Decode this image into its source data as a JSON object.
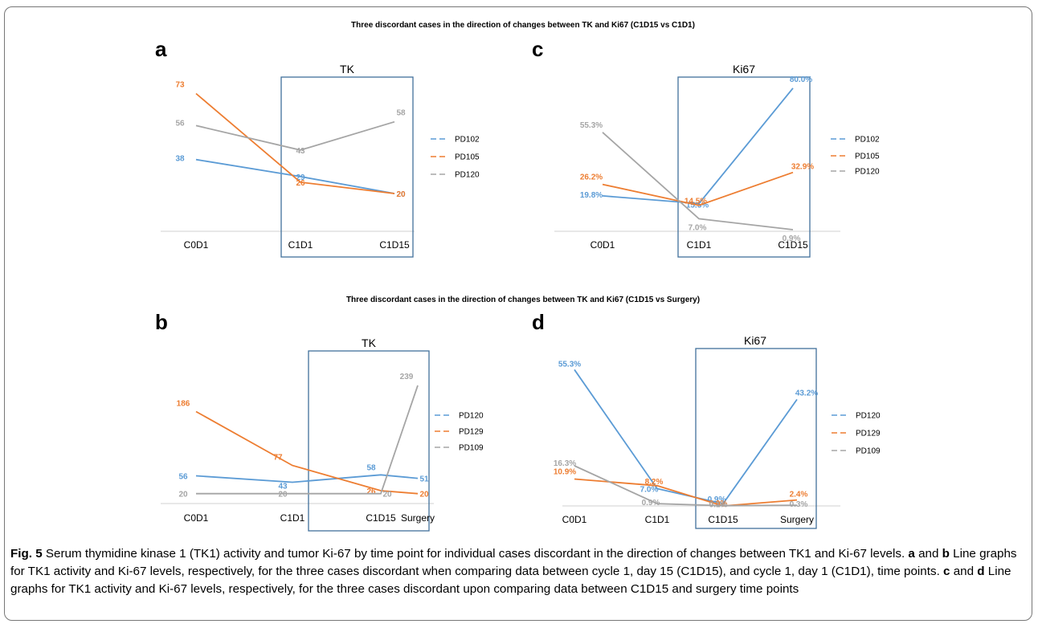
{
  "figure": {
    "top_title": "Three discordant cases in the direction of changes between TK and Ki67 (C1D15 vs C1D1)",
    "bottom_title": "Three discordant cases in the direction of changes between TK and Ki67 (C1D15 vs Surgery)"
  },
  "colors": {
    "blue": "#5b9bd5",
    "orange": "#ed7d31",
    "gray": "#a5a5a5",
    "box": "#41719c",
    "axis": "#d9d9d9"
  },
  "chart_data": [
    {
      "panel": "a",
      "type": "line",
      "title": "TK",
      "categories": [
        "C0D1",
        "C1D1",
        "C1D15"
      ],
      "highlight": [
        "C1D1",
        "C1D15"
      ],
      "series": [
        {
          "name": "PD102",
          "values": [
            38,
            29,
            20
          ],
          "labels": [
            "38",
            "29",
            "20"
          ],
          "color": "blue"
        },
        {
          "name": "PD105",
          "values": [
            73,
            26,
            20
          ],
          "labels": [
            "73",
            "26",
            "20"
          ],
          "color": "orange"
        },
        {
          "name": "PD120",
          "values": [
            56,
            43,
            58
          ],
          "labels": [
            "56",
            "43",
            "58"
          ],
          "color": "gray"
        }
      ],
      "ylim": [
        0,
        80
      ]
    },
    {
      "panel": "c",
      "type": "line",
      "title": "Ki67",
      "categories": [
        "C0D1",
        "C1D1",
        "C1D15"
      ],
      "highlight": [
        "C1D1",
        "C1D15"
      ],
      "series": [
        {
          "name": "PD102",
          "values": [
            19.8,
            15.5,
            80.0
          ],
          "labels": [
            "19.8%",
            "15.5%",
            "80.0%"
          ],
          "color": "blue"
        },
        {
          "name": "PD105",
          "values": [
            26.2,
            14.5,
            32.9
          ],
          "labels": [
            "26.2%",
            "14.5%",
            "32.9%"
          ],
          "color": "orange"
        },
        {
          "name": "PD120",
          "values": [
            55.3,
            7.0,
            0.9
          ],
          "labels": [
            "55.3%",
            "7.0%",
            "0.9%"
          ],
          "color": "gray"
        }
      ],
      "ylim": [
        0,
        88
      ]
    },
    {
      "panel": "b",
      "type": "line",
      "title": "TK",
      "categories": [
        "C0D1",
        "C1D1",
        "C1D15",
        "Surgery"
      ],
      "highlight": [
        "C1D15",
        "Surgery"
      ],
      "series": [
        {
          "name": "PD120",
          "values": [
            56,
            43,
            58,
            51
          ],
          "labels": [
            "56",
            "43",
            "58",
            "51"
          ],
          "color": "blue"
        },
        {
          "name": "PD129",
          "values": [
            186,
            77,
            26,
            20
          ],
          "labels": [
            "186",
            "77",
            "26",
            "20"
          ],
          "color": "orange"
        },
        {
          "name": "PD109",
          "values": [
            20,
            20,
            20,
            239
          ],
          "labels": [
            "20",
            "20",
            "20",
            "239"
          ],
          "color": "gray"
        }
      ],
      "ylim": [
        0,
        255
      ]
    },
    {
      "panel": "d",
      "type": "line",
      "title": "Ki67",
      "categories": [
        "C0D1",
        "C1D1",
        "C1D15",
        "Surgery"
      ],
      "highlight": [
        "C1D15",
        "Surgery"
      ],
      "series": [
        {
          "name": "PD120",
          "values": [
            55.3,
            7.0,
            0.9,
            43.2
          ],
          "labels": [
            "55.3%",
            "7.0%",
            "0.9%",
            "43.2%"
          ],
          "color": "blue"
        },
        {
          "name": "PD129",
          "values": [
            10.9,
            8.2,
            0.0,
            2.4
          ],
          "labels": [
            "10.9%",
            "8.2%",
            "0.0%",
            "2.4%"
          ],
          "color": "orange"
        },
        {
          "name": "PD109",
          "values": [
            16.3,
            0.9,
            0.1,
            0.3
          ],
          "labels": [
            "16.3%",
            "0.9%",
            "0.1%",
            "0.3%"
          ],
          "color": "gray"
        }
      ],
      "ylim": [
        0,
        58
      ]
    }
  ],
  "caption": {
    "label": "Fig. 5",
    "p1": " Serum thymidine kinase 1 (TK1) activity and tumor Ki-67 by time point for individual cases discordant in the direction of changes between TK1 and Ki-67 levels. ",
    "a": "a",
    "and1": " and ",
    "b": "b",
    "p2": " Line graphs for TK1 activity and Ki-67 levels, respectively, for the three cases discordant when comparing data between cycle 1, day 15 (C1D15), and cycle 1, day 1 (C1D1), time points. ",
    "c": "c",
    "and2": " and ",
    "d": "d",
    "p3": " Line graphs for TK1 activity and Ki-67 levels, respectively, for the three cases discordant upon comparing data between C1D15 and surgery time points"
  }
}
